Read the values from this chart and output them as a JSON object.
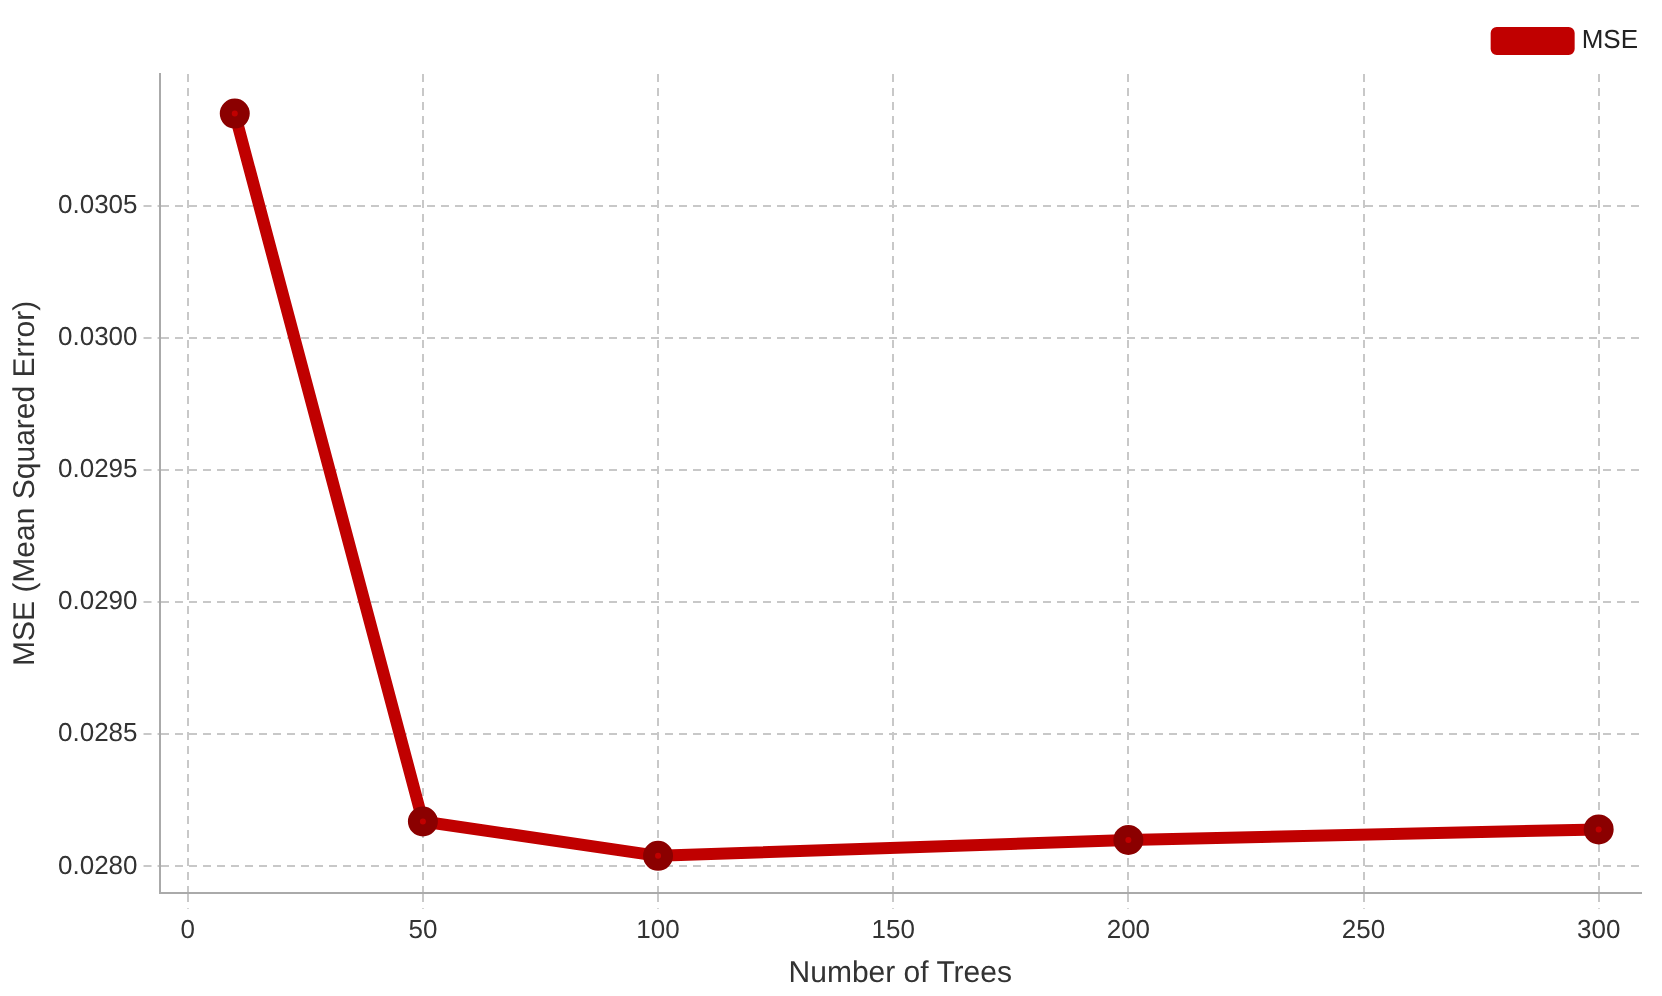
{
  "chart_data": {
    "type": "line",
    "xlabel": "Number of Trees",
    "ylabel": "MSE (Mean Squared Error)",
    "x": [
      10,
      50,
      100,
      200,
      300
    ],
    "series": [
      {
        "name": "MSE",
        "color": "#c00000",
        "values": [
          0.03085,
          0.02817,
          0.02804,
          0.0281,
          0.02814
        ]
      }
    ],
    "xlim": [
      -6,
      309
    ],
    "xticks": [
      0,
      50,
      100,
      150,
      200,
      250,
      300
    ],
    "ylim": [
      0.0279,
      0.031
    ],
    "yticks": [
      {
        "value": 0.028,
        "label": "0.0280"
      },
      {
        "value": 0.0285,
        "label": "0.0285"
      },
      {
        "value": 0.029,
        "label": "0.0290"
      },
      {
        "value": 0.0295,
        "label": "0.0295"
      },
      {
        "value": 0.03,
        "label": "0.0300"
      },
      {
        "value": 0.0305,
        "label": "0.0305"
      }
    ],
    "grid": true,
    "legend": "top right",
    "marker": "circle",
    "line_style": "solid"
  }
}
